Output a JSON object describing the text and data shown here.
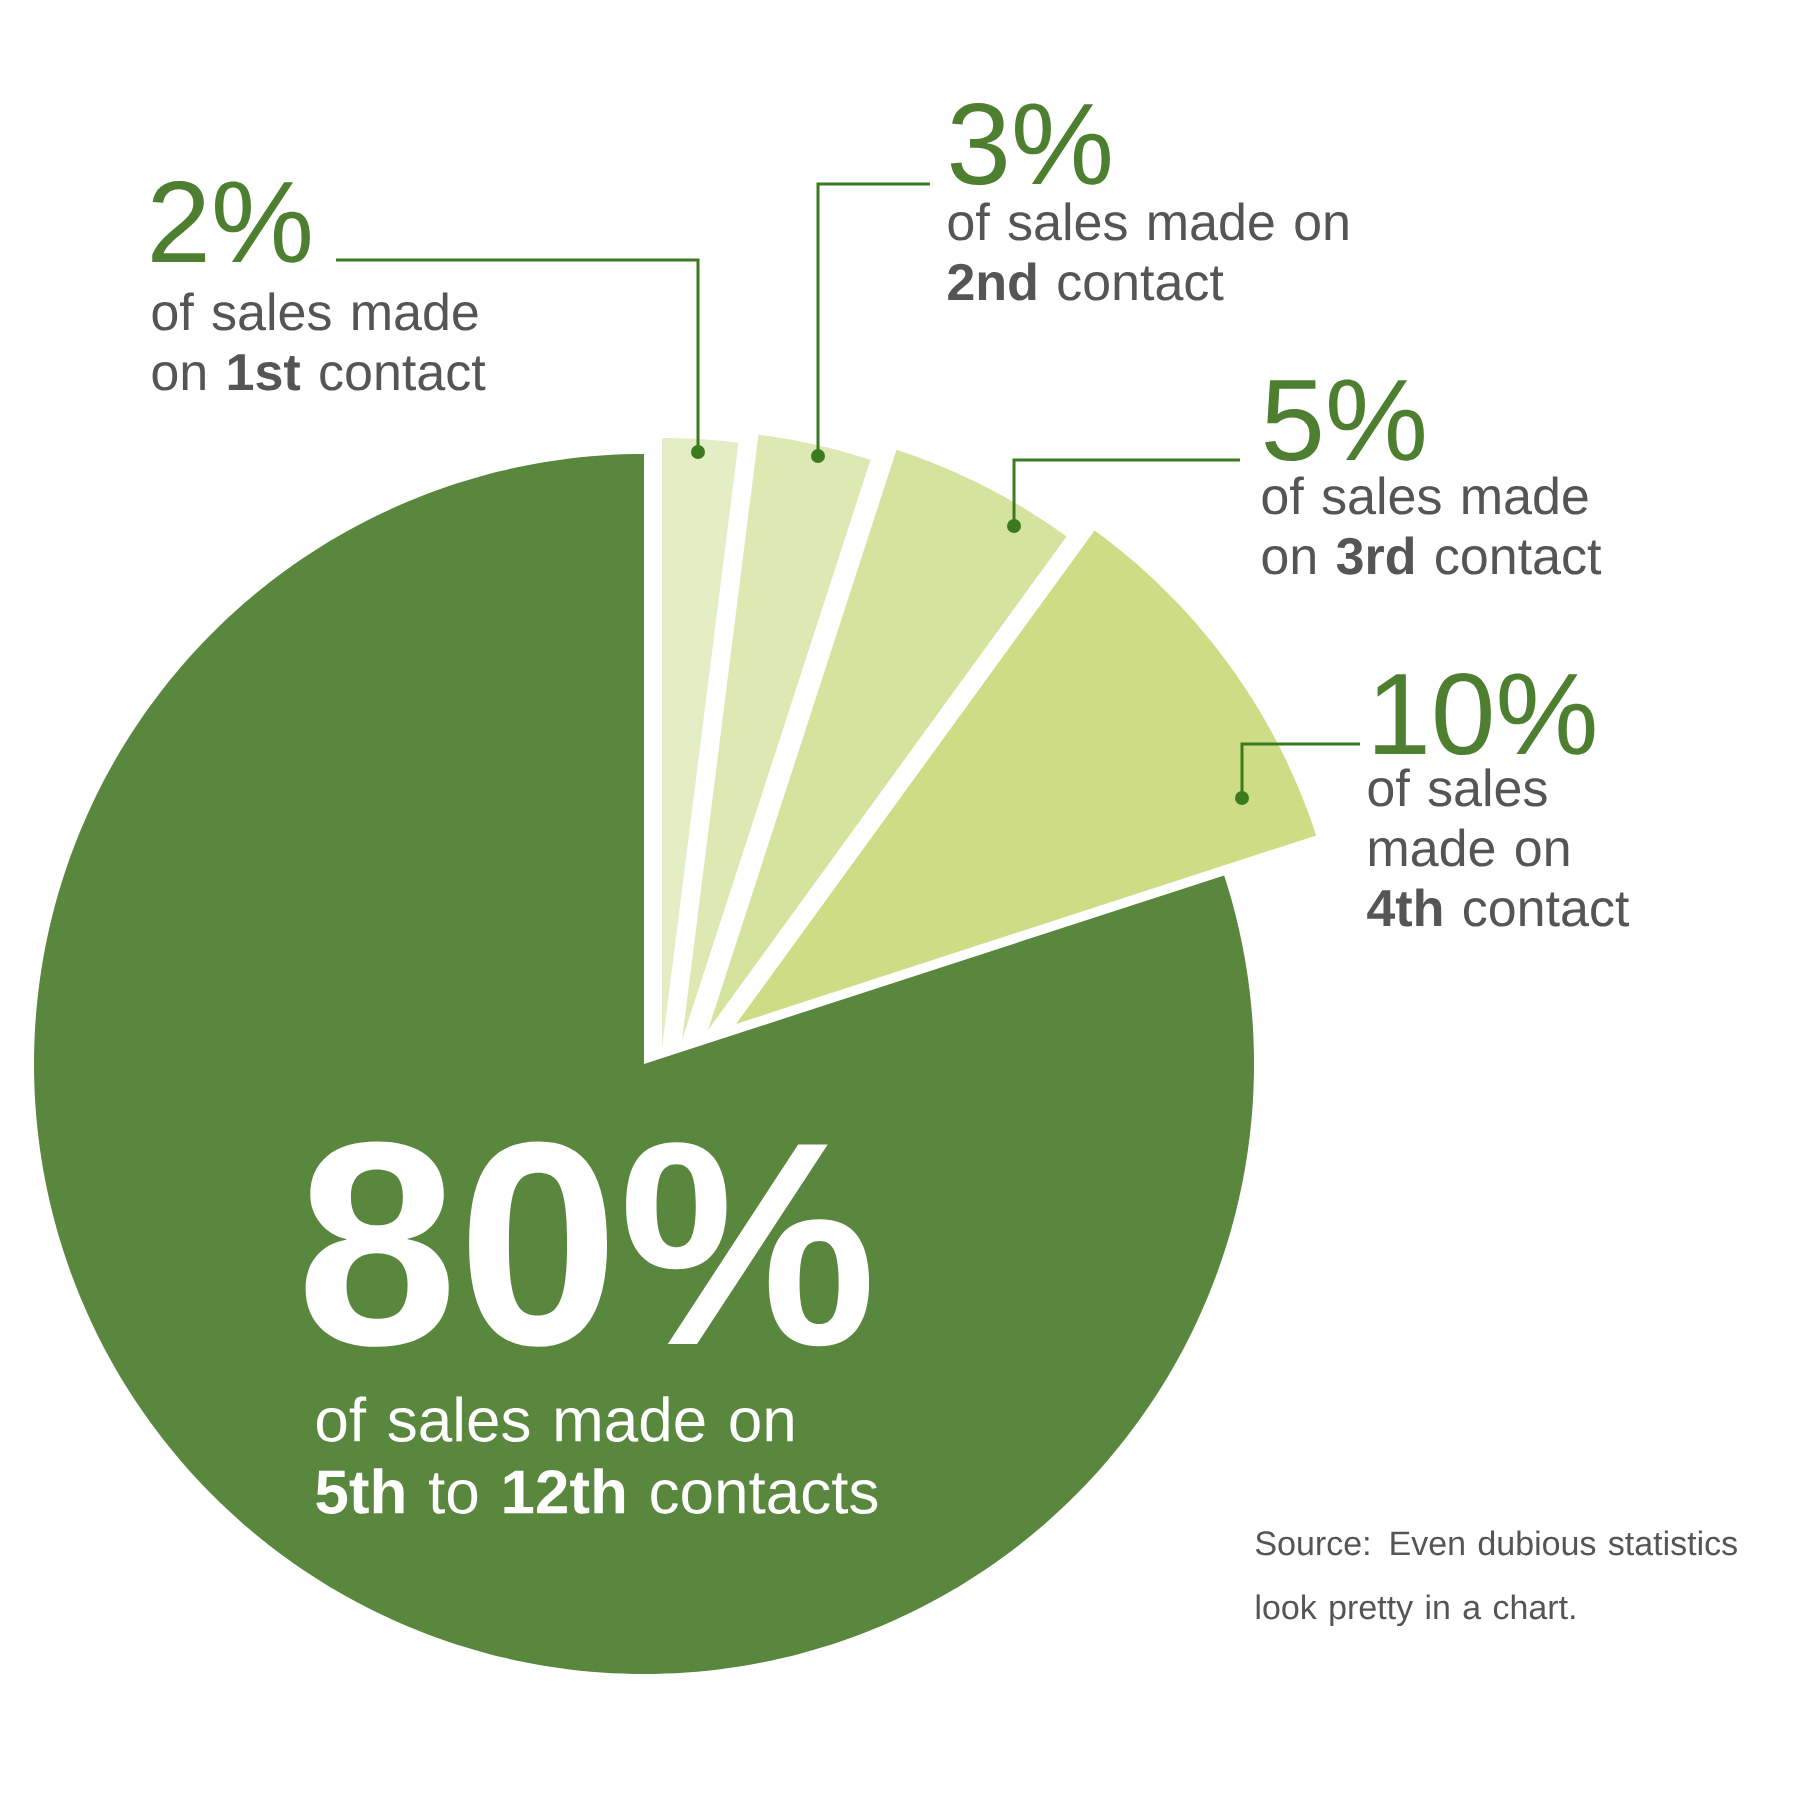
{
  "chart_data": {
    "type": "pie",
    "categories": [
      "of sales made on **1st** contact",
      "of sales made on **2nd** contact",
      "of sales made on **3rd** contact",
      "of sales made on **4th** contact",
      "of sales made on **5th** to **12th** contacts"
    ],
    "values": [
      2,
      3,
      5,
      10,
      80
    ],
    "colors": [
      "#e5edc4",
      "#dde8b2",
      "#d5e39e",
      "#cedc86",
      "#5a873e"
    ],
    "value_labels": [
      "2%",
      "3%",
      "5%",
      "10%",
      "80%"
    ],
    "annotations": [
      "Source: Even dubious statistics look pretty in a chart."
    ]
  }
}
